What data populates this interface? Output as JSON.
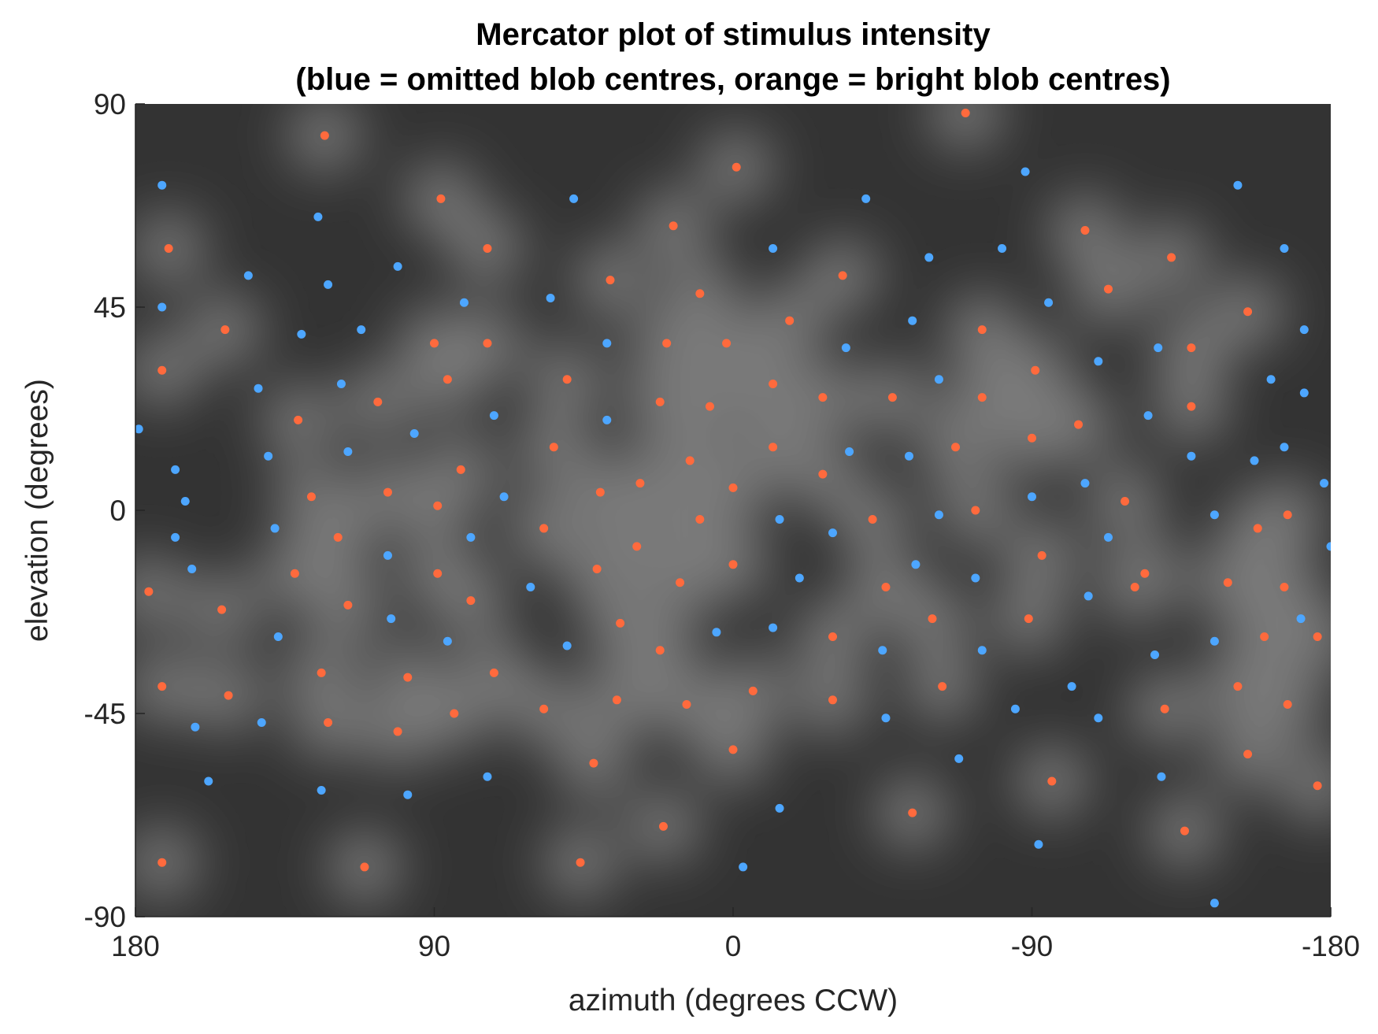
{
  "chart_data": {
    "type": "scatter",
    "title": [
      "Mercator plot of stimulus intensity",
      "(blue = omitted blob centres, orange = bright blob centres)"
    ],
    "xlabel": "azimuth (degrees CCW)",
    "ylabel": "elevation (degrees)",
    "xlim": [
      180,
      -180
    ],
    "ylim": [
      -90,
      90
    ],
    "x_direction": "reversed",
    "xticks": [
      180,
      90,
      0,
      -90,
      -180
    ],
    "xtick_labels": [
      "180",
      "90",
      "0",
      "-90",
      "-180"
    ],
    "yticks": [
      90,
      45,
      0,
      -45,
      -90
    ],
    "ytick_labels": [
      "90",
      "45",
      "0",
      "-45",
      "-90"
    ],
    "grid": false,
    "background": "grayscale intensity map",
    "colors": {
      "omitted": "#4da6ff",
      "bright": "#ff6a3d",
      "background_dark": "#333333",
      "background_light": "#7a7a7a"
    },
    "series": [
      {
        "key": "omitted",
        "color": "#4da6ff",
        "points": [
          [
            172,
            72
          ],
          [
            179,
            18
          ],
          [
            172,
            45
          ],
          [
            168,
            9
          ],
          [
            165,
            2
          ],
          [
            168,
            -6
          ],
          [
            163,
            -13
          ],
          [
            162,
            -48
          ],
          [
            158,
            -60
          ],
          [
            146,
            52
          ],
          [
            143,
            27
          ],
          [
            142,
            -47
          ],
          [
            140,
            12
          ],
          [
            138,
            -4
          ],
          [
            137,
            -28
          ],
          [
            130,
            39
          ],
          [
            125,
            65
          ],
          [
            124,
            -62
          ],
          [
            122,
            50
          ],
          [
            118,
            28
          ],
          [
            116,
            13
          ],
          [
            112,
            40
          ],
          [
            104,
            -10
          ],
          [
            103,
            -24
          ],
          [
            101,
            54
          ],
          [
            98,
            -63
          ],
          [
            96,
            17
          ],
          [
            86,
            -29
          ],
          [
            81,
            46
          ],
          [
            79,
            -6
          ],
          [
            74,
            -59
          ],
          [
            72,
            21
          ],
          [
            69,
            3
          ],
          [
            61,
            -17
          ],
          [
            55,
            47
          ],
          [
            50,
            -30
          ],
          [
            48,
            69
          ],
          [
            38,
            37
          ],
          [
            38,
            20
          ],
          [
            5,
            -27
          ],
          [
            -3,
            -79
          ],
          [
            -12,
            -26
          ],
          [
            -12,
            58
          ],
          [
            -14,
            -2
          ],
          [
            -14,
            -66
          ],
          [
            -20,
            -15
          ],
          [
            -30,
            -5
          ],
          [
            -34,
            36
          ],
          [
            -35,
            13
          ],
          [
            -40,
            69
          ],
          [
            -45,
            -31
          ],
          [
            -46,
            -46
          ],
          [
            -53,
            12
          ],
          [
            -54,
            42
          ],
          [
            -55,
            -12
          ],
          [
            -59,
            56
          ],
          [
            -62,
            29
          ],
          [
            -62,
            -1
          ],
          [
            -68,
            -55
          ],
          [
            -73,
            -15
          ],
          [
            -75,
            -31
          ],
          [
            -81,
            58
          ],
          [
            -85,
            -44
          ],
          [
            -88,
            75
          ],
          [
            -90,
            3
          ],
          [
            -92,
            -74
          ],
          [
            -95,
            46
          ],
          [
            -102,
            -39
          ],
          [
            -106,
            6
          ],
          [
            -107,
            -19
          ],
          [
            -110,
            33
          ],
          [
            -110,
            -46
          ],
          [
            -113,
            -6
          ],
          [
            -125,
            21
          ],
          [
            -127,
            -32
          ],
          [
            -128,
            36
          ],
          [
            -129,
            -59
          ],
          [
            -138,
            12
          ],
          [
            -145,
            -29
          ],
          [
            -145,
            -1
          ],
          [
            -145,
            -87
          ],
          [
            -152,
            72
          ],
          [
            -157,
            11
          ],
          [
            -162,
            29
          ],
          [
            -166,
            14
          ],
          [
            -166,
            58
          ],
          [
            -171,
            -24
          ],
          [
            -172,
            40
          ],
          [
            -172,
            26
          ],
          [
            -180,
            -8
          ],
          [
            -178,
            6
          ]
        ]
      },
      {
        "key": "bright",
        "color": "#ff6a3d",
        "points": [
          [
            176,
            -18
          ],
          [
            172,
            -78
          ],
          [
            172,
            -39
          ],
          [
            170,
            58
          ],
          [
            172,
            31
          ],
          [
            154,
            -22
          ],
          [
            153,
            40
          ],
          [
            152,
            -41
          ],
          [
            132,
            -14
          ],
          [
            131,
            20
          ],
          [
            127,
            3
          ],
          [
            124,
            -36
          ],
          [
            122,
            -47
          ],
          [
            123,
            83
          ],
          [
            119,
            -6
          ],
          [
            116,
            -21
          ],
          [
            111,
            -79
          ],
          [
            107,
            24
          ],
          [
            104,
            4
          ],
          [
            101,
            -49
          ],
          [
            98,
            -37
          ],
          [
            90,
            37
          ],
          [
            89,
            -14
          ],
          [
            89,
            1
          ],
          [
            88,
            69
          ],
          [
            86,
            29
          ],
          [
            84,
            -45
          ],
          [
            82,
            9
          ],
          [
            79,
            -20
          ],
          [
            74,
            58
          ],
          [
            74,
            37
          ],
          [
            72,
            -36
          ],
          [
            57,
            -44
          ],
          [
            57,
            -4
          ],
          [
            54,
            14
          ],
          [
            50,
            29
          ],
          [
            46,
            -78
          ],
          [
            42,
            -56
          ],
          [
            41,
            -13
          ],
          [
            37,
            51
          ],
          [
            40,
            4
          ],
          [
            34,
            -25
          ],
          [
            35,
            -42
          ],
          [
            29,
            -8
          ],
          [
            28,
            6
          ],
          [
            22,
            24
          ],
          [
            20,
            37
          ],
          [
            22,
            -31
          ],
          [
            21,
            -70
          ],
          [
            18,
            63
          ],
          [
            16,
            -16
          ],
          [
            14,
            -43
          ],
          [
            13,
            11
          ],
          [
            10,
            -2
          ],
          [
            10,
            48
          ],
          [
            7,
            23
          ],
          [
            2,
            37
          ],
          [
            0,
            -53
          ],
          [
            0,
            5
          ],
          [
            0,
            -12
          ],
          [
            -1,
            76
          ],
          [
            -6,
            -40
          ],
          [
            -12,
            14
          ],
          [
            -12,
            28
          ],
          [
            -17,
            42
          ],
          [
            -27,
            25
          ],
          [
            -27,
            8
          ],
          [
            -30,
            -28
          ],
          [
            -30,
            -42
          ],
          [
            -33,
            52
          ],
          [
            -42,
            -2
          ],
          [
            -46,
            -17
          ],
          [
            -48,
            25
          ],
          [
            -54,
            -67
          ],
          [
            -60,
            -24
          ],
          [
            -63,
            -39
          ],
          [
            -67,
            14
          ],
          [
            -70,
            88
          ],
          [
            -73,
            0
          ],
          [
            -75,
            40
          ],
          [
            -75,
            25
          ],
          [
            -89,
            -24
          ],
          [
            -90,
            16
          ],
          [
            -91,
            31
          ],
          [
            -93,
            -10
          ],
          [
            -96,
            -60
          ],
          [
            -104,
            19
          ],
          [
            -106,
            62
          ],
          [
            -113,
            49
          ],
          [
            -118,
            2
          ],
          [
            -121,
            -17
          ],
          [
            -124,
            -14
          ],
          [
            -130,
            -44
          ],
          [
            -132,
            56
          ],
          [
            -136,
            -71
          ],
          [
            -138,
            36
          ],
          [
            -138,
            23
          ],
          [
            -149,
            -16
          ],
          [
            -152,
            -39
          ],
          [
            -155,
            -54
          ],
          [
            -155,
            44
          ],
          [
            -158,
            -4
          ],
          [
            -160,
            -28
          ],
          [
            -167,
            -1
          ],
          [
            -166,
            -17
          ],
          [
            -167,
            -43
          ],
          [
            -176,
            -61
          ],
          [
            -176,
            -28
          ]
        ]
      }
    ]
  }
}
